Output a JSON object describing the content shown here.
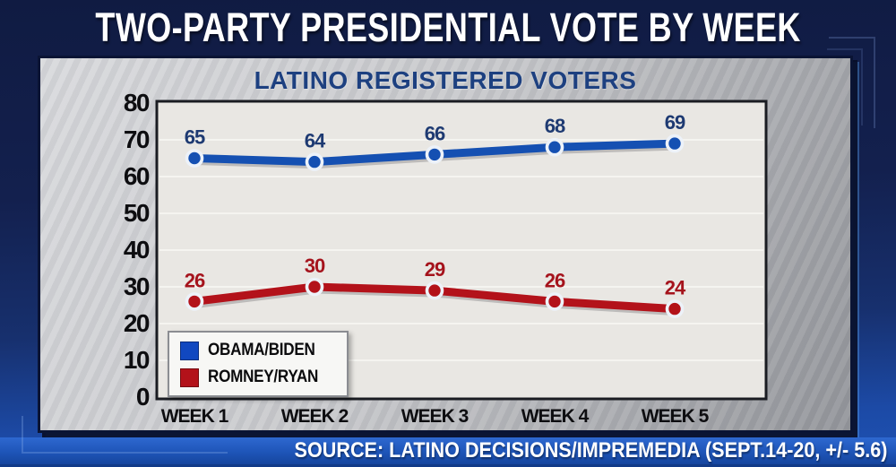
{
  "header": {
    "title": "TWO-PARTY PRESIDENTIAL VOTE BY WEEK"
  },
  "panel": {
    "title": "LATINO REGISTERED VOTERS"
  },
  "legend": {
    "items": [
      {
        "label": "OBAMA/BIDEN",
        "color": "#1148c0"
      },
      {
        "label": "ROMNEY/RYAN",
        "color": "#b3121a"
      }
    ]
  },
  "footer": {
    "source": "SOURCE: LATINO DECISIONS/IMPREMEDIA (SEPT.14-20, +/- 5.6)"
  },
  "colors": {
    "background_top": "#101b42",
    "background_bottom": "#1e52b4",
    "header_text": "#ffffff",
    "panel_title": "#1d4080",
    "plot_background": "#e9e7e3",
    "gridline": "#f5f4f0",
    "plot_border": "#1a1c22",
    "axis_text": "#0d0d10",
    "marker_ring": "#edf2f9",
    "footer_bar": "#1e55b8",
    "footer_text": "#ffffff"
  },
  "chart_data": {
    "type": "line",
    "title": "LATINO REGISTERED VOTERS",
    "categories": [
      "WEEK 1",
      "WEEK 2",
      "WEEK 3",
      "WEEK 4",
      "WEEK 5"
    ],
    "series": [
      {
        "name": "OBAMA/BIDEN",
        "color": "#1550b2",
        "label_color": "#1e3a72",
        "values": [
          65,
          64,
          66,
          68,
          69
        ]
      },
      {
        "name": "ROMNEY/RYAN",
        "color": "#b3121a",
        "label_color": "#a5131c",
        "values": [
          26,
          30,
          29,
          26,
          24
        ]
      }
    ],
    "xlabel": "",
    "ylabel": "",
    "ylim": [
      0,
      80
    ],
    "yticks": [
      0,
      10,
      20,
      30,
      40,
      50,
      60,
      70,
      80
    ],
    "grid": true,
    "legend_position": "bottom-left",
    "marker": "circle-white-ring"
  }
}
